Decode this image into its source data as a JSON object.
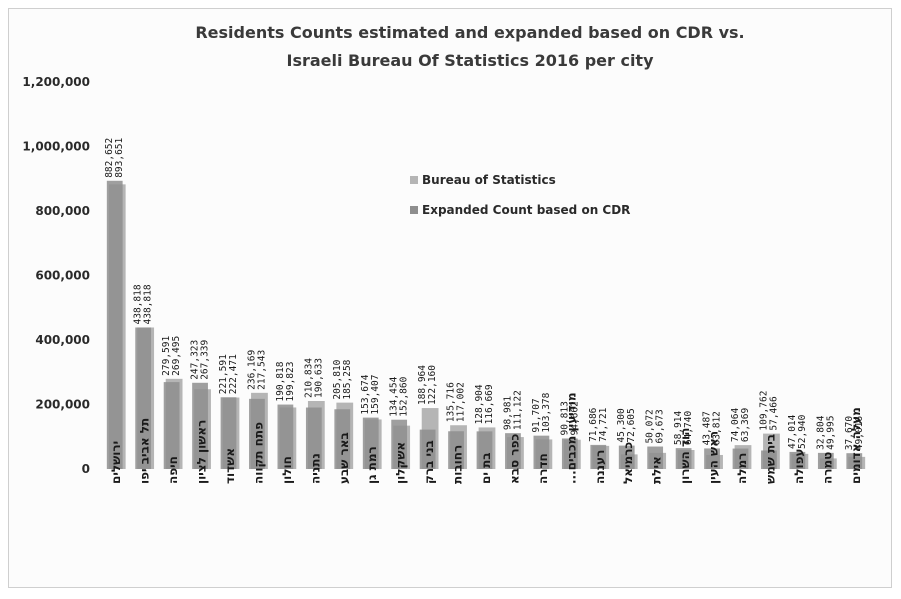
{
  "chart_data": {
    "type": "bar",
    "title_lines": [
      "Residents Counts estimated and expanded based on CDR vs.",
      "Israeli Bureau Of Statistics 2016 per city"
    ],
    "ylim": [
      0,
      1200000
    ],
    "y_ticks": [
      "0",
      "200,000",
      "400,000",
      "600,000",
      "800,000",
      "1,000,000",
      "1,200,000"
    ],
    "y_tick_values": [
      0,
      200000,
      400000,
      600000,
      800000,
      1000000,
      1200000
    ],
    "grid": false,
    "legend_position": "top-right",
    "categories": [
      "ירושלים",
      "תל אביב יפו",
      "חיפה",
      "ראשון לציון",
      "אשדוד",
      "פתח תקווה",
      "חולון",
      "נתניה",
      "באר שבע",
      "רמת גן",
      "אשקלון",
      "בני ברק",
      "רחובות",
      "בת ים",
      "כפר סבא",
      "חדרה",
      "מודיעין מכבים...",
      "רעננה",
      "כרמיאל",
      "אילת",
      "הוד השרון",
      "ראש העין",
      "רמלה",
      "בית שמש",
      "עפולה",
      "טמרה",
      "מעלה אדומים"
    ],
    "series": [
      {
        "name": "Bureau of Statistics",
        "color": "#b5b5b5",
        "values": [
          882652,
          438818,
          279591,
          247323,
          221591,
          236169,
          190818,
          210834,
          205810,
          153674,
          134454,
          188964,
          135716,
          128904,
          98981,
          91707,
          90813,
          71686,
          45300,
          50072,
          58914,
          43487,
          74064,
          109762,
          47014,
          32804,
          37670
        ],
        "labels": [
          "882,652",
          "438,818",
          "279,591",
          "247,323",
          "221,591",
          "236,169",
          "190,818",
          "210,834",
          "205,810",
          "153,674",
          "134,454",
          "188,964",
          "135,716",
          "128,904",
          "98,981",
          "91,707",
          "90,813",
          "71,686",
          "45,300",
          "50,072",
          "58,914",
          "43,487",
          "74,064",
          "109,762",
          "47,014",
          "32,804",
          "37,670"
        ]
      },
      {
        "name": "Expanded Count based on CDR",
        "color": "#8e8e8e",
        "values": [
          893651,
          438818,
          269495,
          267339,
          222471,
          217543,
          199823,
          190633,
          185258,
          159407,
          152860,
          122160,
          117002,
          116669,
          111122,
          103378,
          94662,
          74721,
          72605,
          69673,
          64740,
          63812,
          63369,
          57466,
          52940,
          49995,
          49016
        ],
        "labels": [
          "893,651",
          "438,818",
          "269,495",
          "267,339",
          "222,471",
          "217,543",
          "199,823",
          "190,633",
          "185,258",
          "159,407",
          "152,860",
          "122,160",
          "117,002",
          "116,669",
          "111,122",
          "103,378",
          "94,662",
          "74,721",
          "72,605",
          "69,673",
          "64,740",
          "63,812",
          "63,369",
          "57,466",
          "52,940",
          "49,995",
          "49,016"
        ]
      }
    ]
  }
}
